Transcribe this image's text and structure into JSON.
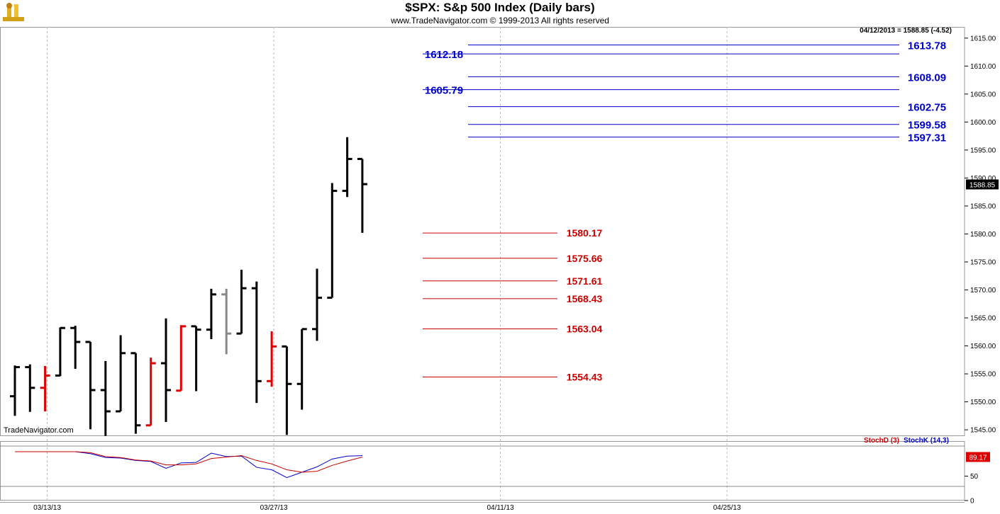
{
  "header": {
    "title": "$SPX:  S&p 500 Index  (Daily bars)",
    "copyright": "www.TradeNavigator.com © 1999-2013 All rights reserved",
    "watermark": "TradeNavigator.com",
    "quote": "04/12/2013 = 1588.85 (-4.52)",
    "last_price_tag": "1588.85"
  },
  "colors": {
    "up": "#000000",
    "down": "#e00000",
    "neutral": "#888888",
    "resistance": "#0000cc",
    "support": "#cc0000",
    "stoch_k": "#0000cc",
    "stoch_d": "#cc0000",
    "grid": "#bbbbbb"
  },
  "chart_data": [
    {
      "type": "ohlc",
      "title": "$SPX:  S&p 500 Index  (Daily bars)",
      "ylim": [
        1544,
        1617
      ],
      "y_ticks": [
        1545,
        1550,
        1555,
        1560,
        1565,
        1570,
        1575,
        1580,
        1585,
        1590,
        1595,
        1600,
        1605,
        1610,
        1615
      ],
      "y_tick_labels": [
        "1545.00",
        "1550.00",
        "1555.00",
        "1560.00",
        "1565.00",
        "1570.00",
        "1575.00",
        "1580.00",
        "1585.00",
        "1590.00",
        "1595.00",
        "1600.00",
        "1605.00",
        "1610.00",
        "1615.00"
      ],
      "x_tick_labels": [
        "03/13/13",
        "03/27/13",
        "04/11/13",
        "04/25/13"
      ],
      "x_tick_bar_index": [
        2,
        17,
        32,
        47
      ],
      "bars": [
        {
          "o": 1551.0,
          "h": 1556.5,
          "l": 1547.5,
          "c": 1556.2,
          "color": "up"
        },
        {
          "o": 1556.2,
          "h": 1556.7,
          "l": 1548.2,
          "c": 1552.5,
          "color": "up"
        },
        {
          "o": 1552.5,
          "h": 1556.4,
          "l": 1548.3,
          "c": 1554.7,
          "color": "down"
        },
        {
          "o": 1554.7,
          "h": 1563.3,
          "l": 1554.6,
          "c": 1563.2,
          "color": "up"
        },
        {
          "o": 1563.2,
          "h": 1563.6,
          "l": 1555.9,
          "c": 1560.7,
          "color": "up"
        },
        {
          "o": 1560.7,
          "h": 1560.7,
          "l": 1545.1,
          "c": 1552.1,
          "color": "up"
        },
        {
          "o": 1552.1,
          "h": 1557.3,
          "l": 1543.9,
          "c": 1548.3,
          "color": "up"
        },
        {
          "o": 1548.3,
          "h": 1561.9,
          "l": 1548.3,
          "c": 1558.7,
          "color": "up"
        },
        {
          "o": 1558.7,
          "h": 1558.7,
          "l": 1544.3,
          "c": 1545.8,
          "color": "up"
        },
        {
          "o": 1545.8,
          "h": 1557.9,
          "l": 1545.8,
          "c": 1556.9,
          "color": "down"
        },
        {
          "o": 1556.9,
          "h": 1564.9,
          "l": 1546.4,
          "c": 1552.1,
          "color": "up"
        },
        {
          "o": 1552.0,
          "h": 1563.7,
          "l": 1552.0,
          "c": 1563.5,
          "color": "down"
        },
        {
          "o": 1563.5,
          "h": 1563.5,
          "l": 1551.9,
          "c": 1562.9,
          "color": "up"
        },
        {
          "o": 1562.9,
          "h": 1570.2,
          "l": 1561.2,
          "c": 1569.2,
          "color": "up"
        },
        {
          "o": 1569.2,
          "h": 1570.2,
          "l": 1558.5,
          "c": 1562.2,
          "color": "neutral"
        },
        {
          "o": 1562.2,
          "h": 1573.6,
          "l": 1562.2,
          "c": 1570.3,
          "color": "up"
        },
        {
          "o": 1570.3,
          "h": 1571.5,
          "l": 1549.8,
          "c": 1553.7,
          "color": "up"
        },
        {
          "o": 1553.7,
          "h": 1562.6,
          "l": 1552.7,
          "c": 1559.9,
          "color": "down"
        },
        {
          "o": 1559.9,
          "h": 1559.9,
          "l": 1544.1,
          "c": 1553.2,
          "color": "up"
        },
        {
          "o": 1553.2,
          "h": 1563.0,
          "l": 1548.6,
          "c": 1563.0,
          "color": "up"
        },
        {
          "o": 1563.0,
          "h": 1573.8,
          "l": 1560.9,
          "c": 1568.6,
          "color": "up"
        },
        {
          "o": 1568.6,
          "h": 1589.1,
          "l": 1568.6,
          "c": 1587.7,
          "color": "up"
        },
        {
          "o": 1587.7,
          "h": 1597.3,
          "l": 1586.6,
          "c": 1593.4,
          "color": "up"
        },
        {
          "o": 1593.4,
          "h": 1593.4,
          "l": 1580.2,
          "c": 1588.9,
          "color": "up"
        }
      ]
    },
    {
      "type": "line",
      "title": "StochD (3)  StochK (14,3)",
      "ylim": [
        0,
        100
      ],
      "y_ticks": [
        0,
        50
      ],
      "y_tick_labels": [
        "0",
        "50"
      ],
      "last_value_tag": "89.17",
      "series": [
        {
          "name": "StochK (14,3)",
          "color": "stoch_k",
          "values": [
            100,
            100,
            100,
            100,
            100,
            96,
            88,
            87,
            82,
            80,
            66,
            77,
            78,
            97,
            90,
            91,
            68,
            63,
            47,
            58,
            69,
            85,
            91,
            92
          ]
        },
        {
          "name": "StochD (3)",
          "color": "stoch_d",
          "values": [
            100,
            100,
            100,
            100,
            100,
            98,
            90,
            88,
            83,
            81,
            73,
            73,
            75,
            86,
            89,
            92,
            82,
            75,
            63,
            58,
            60,
            72,
            81,
            89
          ]
        }
      ]
    }
  ],
  "levels": {
    "resistance": [
      "1613.78",
      "1612.18",
      "1608.09",
      "1605.79",
      "1602.75",
      "1599.58",
      "1597.31"
    ],
    "support": [
      "1580.17",
      "1575.66",
      "1571.61",
      "1568.43",
      "1563.04",
      "1554.43"
    ]
  }
}
